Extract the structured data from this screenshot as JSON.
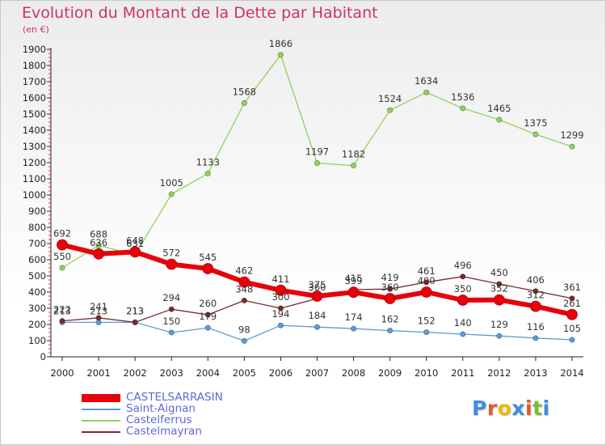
{
  "title": "Evolution du Montant de la Dette par Habitant",
  "unit_label": "(en €)",
  "brand": {
    "letters": [
      {
        "char": "P",
        "color": "#3d8ee0"
      },
      {
        "char": "r",
        "color": "#e2592a"
      },
      {
        "char": "o",
        "color": "#f2b705"
      },
      {
        "char": "x",
        "color": "#3d8ee0"
      },
      {
        "char": "i",
        "color": "#e2592a"
      },
      {
        "char": "t",
        "color": "#7cbf2e"
      },
      {
        "char": "i",
        "color": "#3d8ee0"
      }
    ]
  },
  "chart_data": {
    "type": "line",
    "title": "Evolution du Montant de la Dette par Habitant",
    "ylabel": "(en €)",
    "xlabel": "",
    "x": [
      "2000",
      "2001",
      "2002",
      "2003",
      "2004",
      "2005",
      "2006",
      "2007",
      "2008",
      "2009",
      "2010",
      "2011",
      "2012",
      "2013",
      "2014"
    ],
    "ylim": [
      0,
      1900
    ],
    "yticks": [
      0,
      100,
      200,
      300,
      400,
      500,
      600,
      700,
      800,
      900,
      1000,
      1100,
      1200,
      1300,
      1400,
      1500,
      1600,
      1700,
      1800,
      1900
    ],
    "grid": false,
    "legend_position": "bottom-left",
    "series": [
      {
        "name": "CASTELSARRASIN",
        "color": "#e8000b",
        "values": [
          692,
          636,
          648,
          572,
          545,
          462,
          411,
          375,
          399,
          360,
          400,
          350,
          352,
          312,
          261
        ]
      },
      {
        "name": "Saint-Aignan",
        "color": "#5b9bd5",
        "values": [
          213,
          213,
          213,
          150,
          179,
          98,
          194,
          184,
          174,
          162,
          152,
          140,
          129,
          116,
          105
        ]
      },
      {
        "name": "Castelferrus",
        "color": "#8fd35c",
        "values": [
          550,
          688,
          631,
          1005,
          1133,
          1568,
          1866,
          1197,
          1182,
          1524,
          1634,
          1536,
          1465,
          1375,
          1299
        ]
      },
      {
        "name": "Castelmayran",
        "color": "#7a2c2c",
        "values": [
          222,
          241,
          213,
          294,
          260,
          348,
          300,
          360,
          415,
          419,
          461,
          496,
          450,
          406,
          361
        ]
      }
    ]
  }
}
